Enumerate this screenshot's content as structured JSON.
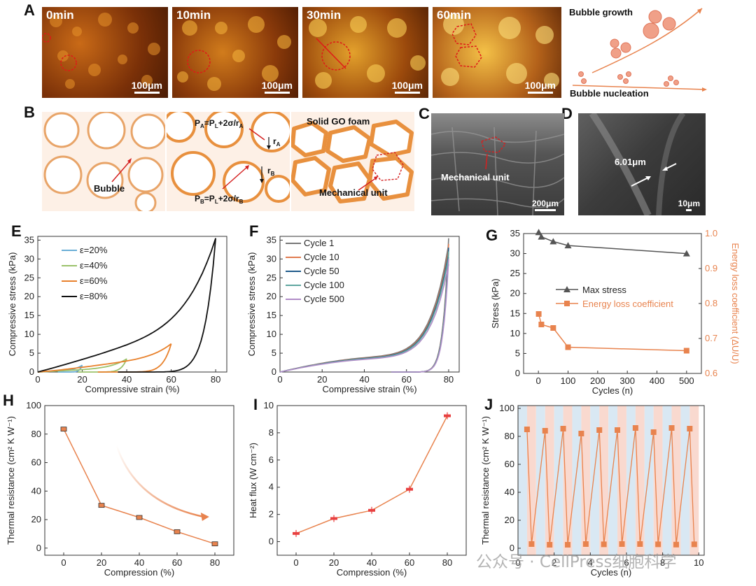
{
  "panel_letters": {
    "a": "A",
    "b": "B",
    "c": "C",
    "d": "D",
    "e": "E",
    "f": "F",
    "g": "G",
    "h": "H",
    "i": "I",
    "j": "J"
  },
  "panel_a": {
    "times": [
      "0min",
      "10min",
      "30min",
      "60min"
    ],
    "scale": "100μm",
    "growth_label": "Bubble growth",
    "nucleation_label": "Bubble nucleation"
  },
  "panel_b": {
    "bubble_label": "Bubble",
    "pa_formula": {
      "main": "P",
      "sub_a": "A",
      "eq": "=P",
      "sub_l": "L",
      "mid": "+2σ/r",
      "sub_ra": "A"
    },
    "pb_formula": {
      "main": "P",
      "sub_b": "B",
      "eq": "=P",
      "sub_l": "L",
      "mid": "+2σ/r",
      "sub_rb": "B"
    },
    "ra_label": "r",
    "ra_sub": "A",
    "rb_label": "r",
    "rb_sub": "B",
    "foam_label": "Solid GO foam",
    "mech_label": "Mechanical unit"
  },
  "panel_c": {
    "label": "Mechanical unit",
    "scale": "200μm"
  },
  "panel_d": {
    "label": "6.01μm",
    "scale": "10μm"
  },
  "colors": {
    "orange": "#e8834e",
    "red": "#d42020",
    "dark": "#222222",
    "gray": "#555555",
    "grid_blue": "#d9e8f3",
    "grid_pink": "#f9d9cf"
  },
  "chart_data": [
    {
      "id": "E",
      "type": "line",
      "xlabel": "Compressive strain (%)",
      "ylabel": "Compressive stress (kPa)",
      "xlim": [
        0,
        85
      ],
      "ylim": [
        0,
        36
      ],
      "xticks": [
        0,
        20,
        40,
        60,
        80
      ],
      "yticks": [
        0,
        5,
        10,
        15,
        20,
        25,
        30,
        35
      ],
      "series": [
        {
          "name": "ε=20%",
          "color": "#6aaed6",
          "max_strain": 20,
          "max_stress": 1.8
        },
        {
          "name": "ε=40%",
          "color": "#9bc26b",
          "max_strain": 40,
          "max_stress": 3.5
        },
        {
          "name": "ε=60%",
          "color": "#e8812c",
          "max_strain": 60,
          "max_stress": 7.5
        },
        {
          "name": "ε=80%",
          "color": "#111111",
          "max_strain": 80,
          "max_stress": 35.5
        }
      ]
    },
    {
      "id": "F",
      "type": "line",
      "xlabel": "Compressive strain (%)",
      "ylabel": "Compressive stress (kPa)",
      "xlim": [
        0,
        85
      ],
      "ylim": [
        0,
        36
      ],
      "xticks": [
        0,
        20,
        40,
        60,
        80
      ],
      "yticks": [
        0,
        5,
        10,
        15,
        20,
        25,
        30,
        35
      ],
      "series": [
        {
          "name": "Cycle 1",
          "color": "#777777",
          "max_stress": 35.5
        },
        {
          "name": "Cycle 10",
          "color": "#e07b4f",
          "max_stress": 34
        },
        {
          "name": "Cycle 50",
          "color": "#1f5a8a",
          "max_stress": 33
        },
        {
          "name": "Cycle 100",
          "color": "#5fa6a0",
          "max_stress": 32
        },
        {
          "name": "Cycle 500",
          "color": "#b08cc7",
          "max_stress": 30
        }
      ]
    },
    {
      "id": "G",
      "type": "line",
      "xlabel": "Cycles (n)",
      "ylabel": "Stress (kPa)",
      "y2label": "Energy loss coefficient (ΔU/U)",
      "xlim": [
        -50,
        550
      ],
      "ylim": [
        0,
        35
      ],
      "y2lim": [
        0.6,
        1.0
      ],
      "xticks": [
        0,
        100,
        200,
        300,
        400,
        500
      ],
      "yticks": [
        0,
        5,
        10,
        15,
        20,
        25,
        30,
        35
      ],
      "y2ticks": [
        0.6,
        0.7,
        0.8,
        0.9,
        1.0
      ],
      "series": [
        {
          "name": "Max stress",
          "axis": "left",
          "color": "#555555",
          "marker": "triangle",
          "x": [
            1,
            10,
            50,
            100,
            500
          ],
          "y": [
            35.3,
            34.2,
            33.0,
            32.0,
            30.0
          ]
        },
        {
          "name": "Energy loss coefficient",
          "axis": "right",
          "color": "#e8834e",
          "marker": "square",
          "x": [
            1,
            10,
            50,
            100,
            500
          ],
          "y": [
            0.77,
            0.74,
            0.73,
            0.675,
            0.665
          ]
        }
      ]
    },
    {
      "id": "H",
      "type": "line",
      "xlabel": "Compression (%)",
      "ylabel": "Thermal resistance (cm² K W⁻¹)",
      "xlim": [
        -10,
        90
      ],
      "ylim": [
        -5,
        100
      ],
      "xticks": [
        0,
        20,
        40,
        60,
        80
      ],
      "yticks": [
        0,
        20,
        40,
        60,
        80,
        100
      ],
      "series": [
        {
          "name": "Thermal resistance",
          "color": "#e8834e",
          "x": [
            0,
            20,
            40,
            60,
            80
          ],
          "y": [
            83.5,
            30,
            21.5,
            11.5,
            3
          ]
        }
      ]
    },
    {
      "id": "I",
      "type": "line",
      "xlabel": "Compression (%)",
      "ylabel": "Heat flux (W cm⁻²)",
      "xlim": [
        -10,
        90
      ],
      "ylim": [
        -1,
        10
      ],
      "xticks": [
        0,
        20,
        40,
        60,
        80
      ],
      "yticks": [
        0,
        2,
        4,
        6,
        8,
        10
      ],
      "series": [
        {
          "name": "Heat flux",
          "color": "#e8834e",
          "x": [
            0,
            20,
            40,
            60,
            80
          ],
          "y": [
            0.6,
            1.7,
            2.3,
            3.85,
            9.25
          ]
        }
      ]
    },
    {
      "id": "J",
      "type": "line",
      "xlabel": "Cycles (n)",
      "ylabel": "Thermal resistance (cm² K W⁻¹)",
      "xlim": [
        0,
        10.3
      ],
      "ylim": [
        -5,
        102
      ],
      "xticks": [
        0,
        2,
        4,
        6,
        8,
        10
      ],
      "yticks": [
        0,
        20,
        40,
        60,
        80,
        100
      ],
      "series": [
        {
          "name": "Thermal resistance cycling",
          "color": "#e8834e",
          "x": [
            0.5,
            0.75,
            1.5,
            1.75,
            2.5,
            2.75,
            3.5,
            3.75,
            4.5,
            4.75,
            5.5,
            5.75,
            6.5,
            6.75,
            7.5,
            7.75,
            8.5,
            8.75,
            9.5,
            9.75
          ],
          "y": [
            85,
            3,
            84,
            2.5,
            85.5,
            2.5,
            82,
            3,
            84.5,
            2.8,
            84.5,
            3,
            86,
            3,
            83,
            2.8,
            86,
            2.6,
            85.5,
            2.8
          ]
        }
      ]
    }
  ],
  "watermark": "公众号 · CellPress细胞科学"
}
